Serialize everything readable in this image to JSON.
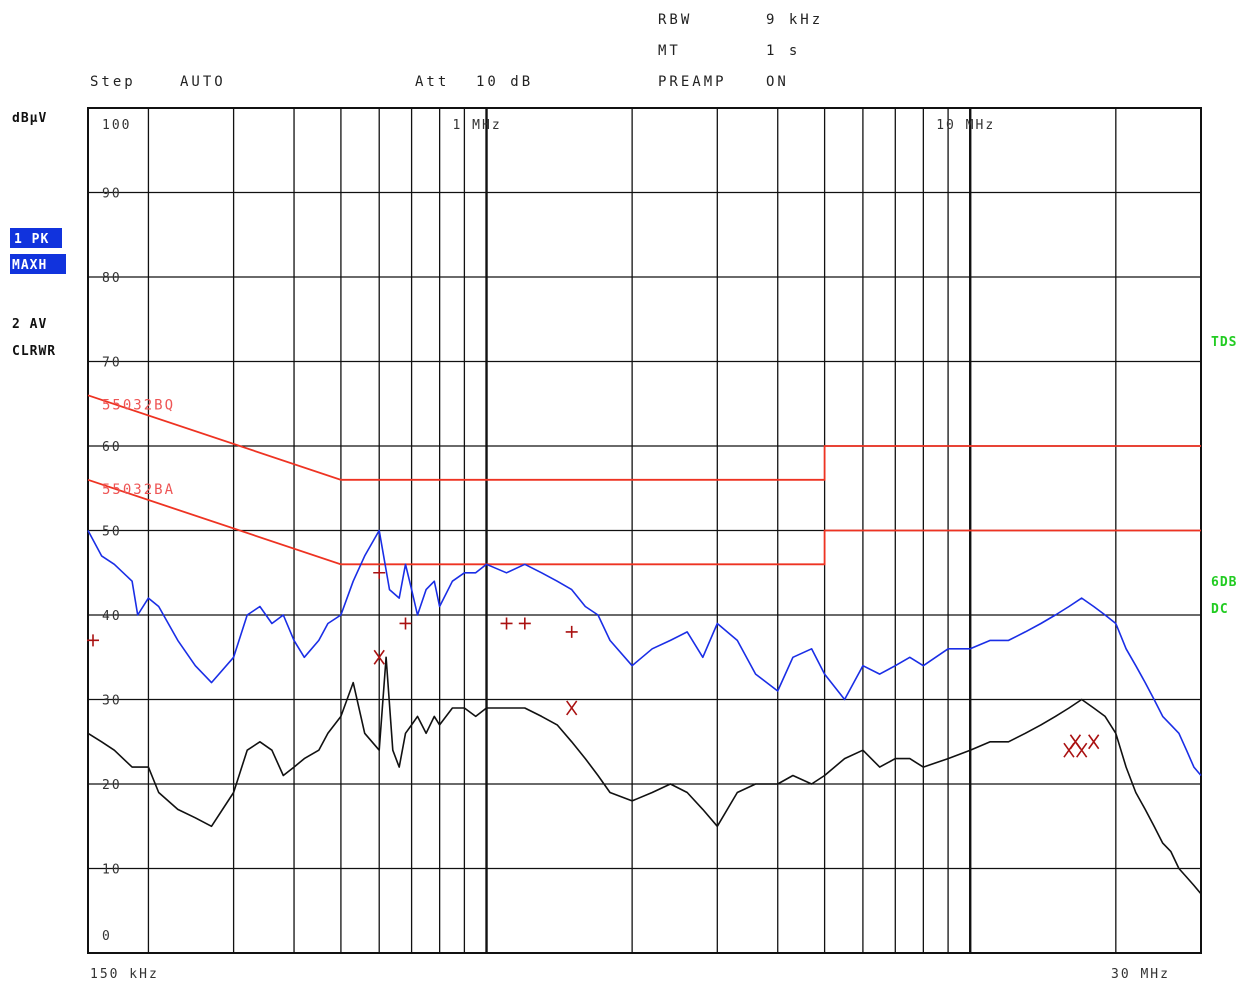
{
  "header": {
    "rbw_label": "RBW",
    "rbw_value": "9 kHz",
    "mt_label": "MT",
    "mt_value": "1 s",
    "preamp_label": "PREAMP",
    "preamp_value": "ON",
    "step_label": "Step",
    "step_value": "AUTO",
    "att_label": "Att",
    "att_value": "10 dB"
  },
  "side": {
    "unit": "dBµV",
    "trace1_badge_a": "1 PK",
    "trace1_badge_b": "MAXH",
    "trace2_a": "2 AV",
    "trace2_b": "CLRWR"
  },
  "right_labels": {
    "tds": "TDS",
    "sixdb": "6DB",
    "dc": "DC"
  },
  "colors": {
    "trace1": "#1a2ee6",
    "trace2": "#111111",
    "limit": "#ee3322",
    "marker": "#aa1111",
    "right_label": "#22cc22",
    "badge_bg": "#1133dd"
  },
  "chart_data": {
    "type": "line",
    "x_scale": "log",
    "xlim": [
      0.15,
      30
    ],
    "ylim": [
      0,
      100
    ],
    "xunit": "MHz",
    "ylabel": "dBµV",
    "x_start_label": "150 kHz",
    "x_end_label": "30 MHz",
    "x_mid_labels": [
      {
        "x": 1,
        "label": "1 MHz"
      },
      {
        "x": 10,
        "label": "10 MHz"
      }
    ],
    "y_ticks": [
      0,
      10,
      20,
      30,
      40,
      50,
      60,
      70,
      80,
      90,
      100
    ],
    "x_gridlines": [
      0.2,
      0.3,
      0.4,
      0.5,
      0.6,
      0.7,
      0.8,
      0.9,
      1,
      2,
      3,
      4,
      5,
      6,
      7,
      8,
      9,
      10,
      20
    ],
    "grid": true,
    "limits": [
      {
        "name": "55032BQ",
        "points": [
          [
            0.15,
            66
          ],
          [
            0.5,
            56
          ],
          [
            5,
            56
          ],
          [
            5,
            60
          ],
          [
            30,
            60
          ]
        ]
      },
      {
        "name": "55032BA",
        "points": [
          [
            0.15,
            56
          ],
          [
            0.5,
            46
          ],
          [
            5,
            46
          ],
          [
            5,
            50
          ],
          [
            30,
            50
          ]
        ]
      }
    ],
    "series": [
      {
        "trace": 1,
        "x": [
          0.15,
          0.16,
          0.17,
          0.185,
          0.19,
          0.2,
          0.21,
          0.23,
          0.25,
          0.27,
          0.3,
          0.32,
          0.34,
          0.36,
          0.38,
          0.4,
          0.42,
          0.45,
          0.47,
          0.5,
          0.53,
          0.56,
          0.6,
          0.63,
          0.66,
          0.68,
          0.7,
          0.72,
          0.75,
          0.78,
          0.8,
          0.85,
          0.9,
          0.95,
          1.0,
          1.1,
          1.2,
          1.3,
          1.4,
          1.5,
          1.6,
          1.7,
          1.8,
          2.0,
          2.2,
          2.4,
          2.6,
          2.8,
          3.0,
          3.3,
          3.6,
          4.0,
          4.3,
          4.7,
          5.0,
          5.5,
          6.0,
          6.5,
          7.0,
          7.5,
          8.0,
          9.0,
          10.0,
          11,
          12,
          13,
          14,
          15,
          16,
          17,
          18,
          19,
          20,
          21,
          22,
          23,
          24,
          25,
          26,
          27,
          28,
          29,
          30
        ],
        "y": [
          50,
          47,
          46,
          44,
          40,
          42,
          41,
          37,
          34,
          32,
          35,
          40,
          41,
          39,
          40,
          37,
          35,
          37,
          39,
          40,
          44,
          47,
          50,
          43,
          42,
          46,
          43,
          40,
          43,
          44,
          41,
          44,
          45,
          45,
          46,
          45,
          46,
          45,
          44,
          43,
          41,
          40,
          37,
          34,
          36,
          37,
          38,
          35,
          39,
          37,
          33,
          31,
          35,
          36,
          33,
          30,
          34,
          33,
          34,
          35,
          34,
          36,
          36,
          37,
          37,
          38,
          39,
          40,
          41,
          42,
          41,
          40,
          39,
          36,
          34,
          32,
          30,
          28,
          27,
          26,
          24,
          22,
          21
        ]
      },
      {
        "trace": 2,
        "x": [
          0.15,
          0.16,
          0.17,
          0.185,
          0.2,
          0.21,
          0.23,
          0.25,
          0.27,
          0.3,
          0.32,
          0.34,
          0.36,
          0.38,
          0.4,
          0.42,
          0.45,
          0.47,
          0.5,
          0.53,
          0.56,
          0.6,
          0.62,
          0.64,
          0.66,
          0.68,
          0.7,
          0.72,
          0.75,
          0.78,
          0.8,
          0.85,
          0.9,
          0.95,
          1.0,
          1.1,
          1.2,
          1.3,
          1.4,
          1.5,
          1.6,
          1.7,
          1.8,
          2.0,
          2.2,
          2.4,
          2.6,
          2.8,
          3.0,
          3.3,
          3.6,
          4.0,
          4.3,
          4.7,
          5.0,
          5.5,
          6.0,
          6.5,
          7.0,
          7.5,
          8.0,
          9.0,
          10.0,
          11,
          12,
          13,
          14,
          15,
          16,
          17,
          18,
          19,
          20,
          21,
          22,
          23,
          24,
          25,
          26,
          27,
          28,
          29,
          30
        ],
        "y": [
          26,
          25,
          24,
          22,
          22,
          19,
          17,
          16,
          15,
          19,
          24,
          25,
          24,
          21,
          22,
          23,
          24,
          26,
          28,
          32,
          26,
          24,
          35,
          24,
          22,
          26,
          27,
          28,
          26,
          28,
          27,
          29,
          29,
          28,
          29,
          29,
          29,
          28,
          27,
          25,
          23,
          21,
          19,
          18,
          19,
          20,
          19,
          17,
          15,
          19,
          20,
          20,
          21,
          20,
          21,
          23,
          24,
          22,
          23,
          23,
          22,
          23,
          24,
          25,
          25,
          26,
          27,
          28,
          29,
          30,
          29,
          28,
          26,
          22,
          19,
          17,
          15,
          13,
          12,
          10,
          9,
          8,
          7
        ]
      }
    ],
    "markers_plus": [
      [
        0.15,
        37
      ],
      [
        0.6,
        45
      ],
      [
        0.68,
        39
      ],
      [
        1.1,
        39
      ],
      [
        1.2,
        39
      ],
      [
        1.5,
        38
      ]
    ],
    "markers_x": [
      [
        0.6,
        35
      ],
      [
        1.5,
        29
      ],
      [
        16,
        24
      ],
      [
        16.5,
        25
      ],
      [
        17,
        24
      ],
      [
        18,
        25
      ]
    ]
  }
}
